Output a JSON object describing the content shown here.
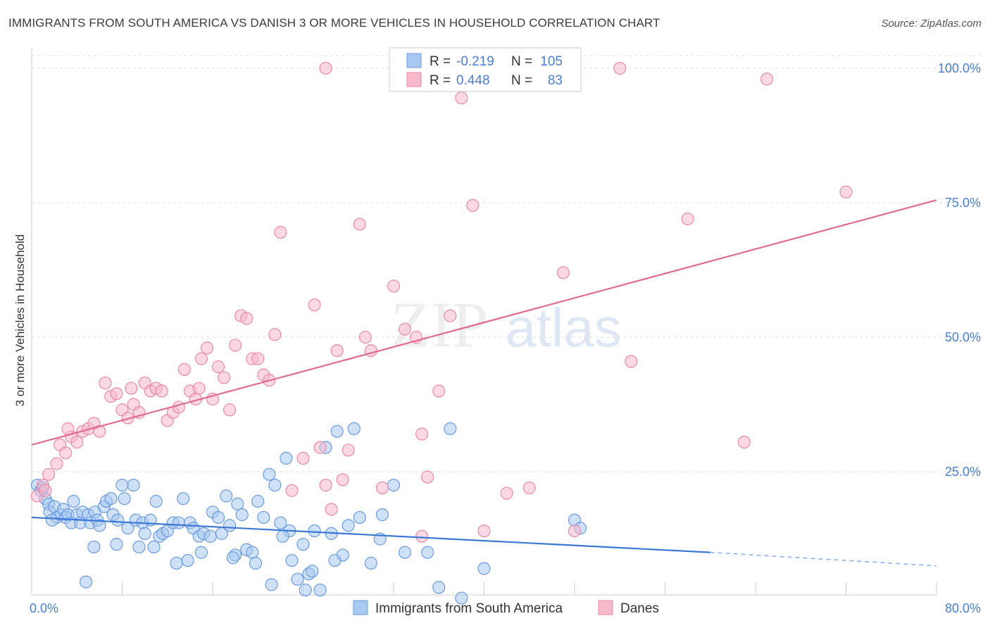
{
  "header": {
    "title": "IMMIGRANTS FROM SOUTH AMERICA VS DANISH 3 OR MORE VEHICLES IN HOUSEHOLD CORRELATION CHART",
    "source": "Source: ZipAtlas.com"
  },
  "watermark": {
    "zip": "ZIP",
    "atlas": "atlas"
  },
  "colors": {
    "blue_fill": "#a8c8f0",
    "blue_stroke": "#6a9be0",
    "blue_line": "#3a78d4",
    "pink_fill": "#f7b8cc",
    "pink_stroke": "#e88aa8",
    "pink_line": "#e06a90",
    "grid": "#dddddd",
    "tick_text": "#4a7fd4"
  },
  "legend": {
    "rows": [
      {
        "r_label": "R =",
        "r_value": "-0.219",
        "n_label": "N =",
        "n_value": "105"
      },
      {
        "r_label": "R =",
        "r_value": "0.448",
        "n_label": "N =",
        "n_value": "83"
      }
    ]
  },
  "chart_data": {
    "type": "scatter",
    "title": "IMMIGRANTS FROM SOUTH AMERICA VS DANISH 3 OR MORE VEHICLES IN HOUSEHOLD CORRELATION CHART",
    "xlabel": "",
    "ylabel": "3 or more Vehicles in Household",
    "xlim": [
      0,
      80
    ],
    "ylim": [
      0,
      100
    ],
    "x_tick_labels": [
      "0.0%",
      "80.0%"
    ],
    "y_ticks": [
      25,
      50,
      75,
      100
    ],
    "y_tick_labels": [
      "25.0%",
      "50.0%",
      "75.0%",
      "100.0%"
    ],
    "grid": true,
    "legend_position": "top-center",
    "series": [
      {
        "name": "Immigrants from South America",
        "color": "#a8c8f0",
        "r": -0.219,
        "n": 105,
        "trend": {
          "x0": 0,
          "y0": 16.5,
          "x1": 60,
          "y1": 10.0,
          "dashed_to_x": 80,
          "dashed_to_y": 7.5
        },
        "points": [
          [
            0.5,
            22.5
          ],
          [
            0.8,
            21.5
          ],
          [
            1.0,
            22.0
          ],
          [
            1.2,
            20.0
          ],
          [
            1.5,
            19.0
          ],
          [
            1.6,
            17.5
          ],
          [
            2.0,
            18.5
          ],
          [
            2.2,
            16.5
          ],
          [
            2.6,
            17.0
          ],
          [
            2.8,
            18.0
          ],
          [
            3.0,
            16.5
          ],
          [
            3.2,
            17.0
          ],
          [
            3.5,
            15.5
          ],
          [
            3.7,
            19.5
          ],
          [
            4.0,
            17.0
          ],
          [
            4.3,
            15.5
          ],
          [
            4.5,
            17.5
          ],
          [
            5.0,
            17.0
          ],
          [
            5.2,
            15.5
          ],
          [
            5.6,
            17.5
          ],
          [
            5.8,
            16.0
          ],
          [
            6.0,
            15.0
          ],
          [
            6.4,
            18.5
          ],
          [
            6.6,
            19.5
          ],
          [
            7.0,
            20.0
          ],
          [
            7.2,
            17.0
          ],
          [
            7.6,
            16.0
          ],
          [
            8.0,
            22.5
          ],
          [
            8.2,
            20.0
          ],
          [
            8.5,
            14.5
          ],
          [
            9.0,
            22.5
          ],
          [
            9.2,
            16.0
          ],
          [
            9.8,
            15.5
          ],
          [
            10.0,
            13.5
          ],
          [
            10.5,
            16.0
          ],
          [
            11.0,
            19.5
          ],
          [
            11.3,
            13.0
          ],
          [
            11.6,
            13.5
          ],
          [
            12.0,
            14.0
          ],
          [
            12.5,
            15.5
          ],
          [
            13.0,
            15.5
          ],
          [
            13.4,
            20.0
          ],
          [
            14.0,
            15.5
          ],
          [
            14.3,
            14.5
          ],
          [
            14.8,
            13.0
          ],
          [
            15.2,
            13.5
          ],
          [
            15.8,
            13.0
          ],
          [
            16.0,
            17.5
          ],
          [
            16.5,
            16.5
          ],
          [
            16.8,
            13.5
          ],
          [
            17.2,
            20.5
          ],
          [
            17.5,
            15.0
          ],
          [
            18.0,
            9.5
          ],
          [
            18.2,
            19.0
          ],
          [
            18.6,
            17.0
          ],
          [
            19.0,
            10.5
          ],
          [
            19.5,
            10.0
          ],
          [
            20.0,
            19.5
          ],
          [
            20.5,
            16.5
          ],
          [
            21.0,
            24.5
          ],
          [
            21.5,
            22.5
          ],
          [
            22.0,
            15.5
          ],
          [
            22.5,
            27.5
          ],
          [
            22.8,
            14.0
          ],
          [
            23.0,
            8.5
          ],
          [
            23.5,
            5.0
          ],
          [
            24.0,
            11.5
          ],
          [
            24.5,
            6.0
          ],
          [
            25.0,
            14.0
          ],
          [
            25.5,
            3.0
          ],
          [
            26.0,
            29.5
          ],
          [
            26.5,
            13.5
          ],
          [
            27.0,
            32.5
          ],
          [
            27.5,
            9.5
          ],
          [
            28.0,
            15.0
          ],
          [
            28.5,
            33.0
          ],
          [
            29.0,
            16.5
          ],
          [
            30.0,
            8.0
          ],
          [
            31.0,
            17.0
          ],
          [
            32.0,
            22.5
          ],
          [
            33.0,
            10.0
          ],
          [
            35.0,
            10.0
          ],
          [
            36.0,
            3.5
          ],
          [
            37.0,
            33.0
          ],
          [
            38.0,
            1.5
          ],
          [
            40.0,
            7.0
          ],
          [
            48.0,
            16.0
          ],
          [
            48.5,
            14.5
          ],
          [
            1.8,
            16.0
          ],
          [
            7.5,
            11.5
          ],
          [
            9.5,
            11.0
          ],
          [
            10.8,
            11.0
          ],
          [
            12.8,
            8.0
          ],
          [
            13.8,
            8.5
          ],
          [
            15.0,
            10.0
          ],
          [
            17.8,
            9.0
          ],
          [
            21.2,
            4.0
          ],
          [
            22.2,
            13.0
          ],
          [
            24.8,
            6.5
          ],
          [
            26.8,
            8.5
          ],
          [
            30.8,
            12.5
          ],
          [
            5.5,
            11.0
          ],
          [
            4.8,
            4.5
          ],
          [
            24.2,
            3.0
          ],
          [
            19.8,
            8.0
          ]
        ]
      },
      {
        "name": "Danes",
        "color": "#f7b8cc",
        "r": 0.448,
        "n": 83,
        "trend": {
          "x0": 0,
          "y0": 30.0,
          "x1": 80,
          "y1": 75.5
        },
        "points": [
          [
            0.5,
            20.5
          ],
          [
            1.0,
            22.5
          ],
          [
            1.5,
            24.5
          ],
          [
            2.2,
            26.5
          ],
          [
            2.5,
            30.0
          ],
          [
            3.0,
            28.5
          ],
          [
            3.5,
            31.5
          ],
          [
            4.0,
            30.5
          ],
          [
            4.5,
            32.5
          ],
          [
            5.0,
            33.0
          ],
          [
            5.5,
            34.0
          ],
          [
            6.0,
            32.5
          ],
          [
            6.5,
            41.5
          ],
          [
            7.0,
            39.0
          ],
          [
            7.5,
            39.5
          ],
          [
            8.0,
            36.5
          ],
          [
            8.5,
            35.0
          ],
          [
            9.0,
            37.5
          ],
          [
            9.5,
            36.0
          ],
          [
            10.0,
            41.5
          ],
          [
            10.5,
            40.0
          ],
          [
            11.0,
            40.5
          ],
          [
            11.5,
            40.0
          ],
          [
            12.0,
            34.5
          ],
          [
            12.5,
            36.0
          ],
          [
            13.0,
            37.0
          ],
          [
            13.5,
            44.0
          ],
          [
            14.0,
            40.0
          ],
          [
            14.5,
            38.5
          ],
          [
            15.0,
            46.0
          ],
          [
            15.5,
            48.0
          ],
          [
            16.0,
            38.5
          ],
          [
            16.5,
            44.5
          ],
          [
            17.0,
            42.5
          ],
          [
            17.5,
            36.5
          ],
          [
            18.0,
            48.5
          ],
          [
            18.5,
            54.0
          ],
          [
            19.0,
            53.5
          ],
          [
            19.5,
            46.0
          ],
          [
            20.0,
            46.0
          ],
          [
            20.5,
            43.0
          ],
          [
            21.0,
            42.0
          ],
          [
            21.5,
            50.5
          ],
          [
            22.0,
            69.5
          ],
          [
            23.0,
            21.5
          ],
          [
            24.0,
            27.5
          ],
          [
            25.0,
            56.0
          ],
          [
            25.5,
            29.5
          ],
          [
            26.0,
            22.5
          ],
          [
            26.5,
            18.0
          ],
          [
            27.0,
            47.5
          ],
          [
            27.5,
            23.5
          ],
          [
            28.0,
            29.0
          ],
          [
            29.0,
            71.0
          ],
          [
            29.5,
            50.0
          ],
          [
            30.0,
            47.5
          ],
          [
            31.0,
            22.0
          ],
          [
            32.0,
            59.5
          ],
          [
            33.0,
            51.5
          ],
          [
            34.0,
            50.0
          ],
          [
            34.5,
            32.0
          ],
          [
            35.0,
            24.0
          ],
          [
            36.0,
            40.0
          ],
          [
            37.0,
            54.0
          ],
          [
            38.0,
            94.5
          ],
          [
            39.0,
            74.5
          ],
          [
            40.0,
            14.0
          ],
          [
            42.0,
            21.0
          ],
          [
            44.0,
            22.0
          ],
          [
            47.0,
            62.0
          ],
          [
            48.0,
            14.0
          ],
          [
            53.0,
            45.5
          ],
          [
            58.0,
            72.0
          ],
          [
            63.0,
            30.5
          ],
          [
            65.0,
            98.0
          ],
          [
            72.0,
            77.0
          ],
          [
            26.0,
            100.0
          ],
          [
            52.0,
            100.0
          ],
          [
            34.5,
            13.0
          ],
          [
            3.2,
            33.0
          ],
          [
            8.8,
            40.5
          ],
          [
            14.8,
            40.5
          ],
          [
            1.2,
            21.5
          ]
        ]
      }
    ]
  },
  "bottom_legend": {
    "items": [
      {
        "label": "Immigrants from South America"
      },
      {
        "label": "Danes"
      }
    ]
  }
}
